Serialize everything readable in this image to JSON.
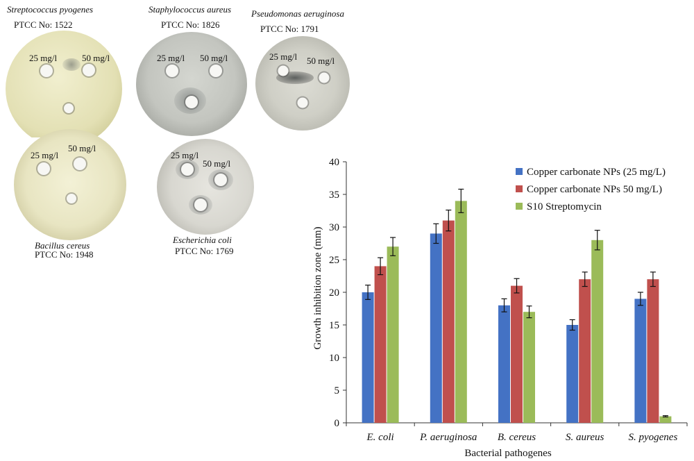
{
  "plates": [
    {
      "name": "Streptococcus pyogenes",
      "code": "PTCC No: 1522",
      "discs": [
        "25 mg/l",
        "50 mg/l"
      ]
    },
    {
      "name": "Staphylococcus aureus",
      "code": "PTCC No: 1826",
      "discs": [
        "25 mg/l",
        "50 mg/l"
      ]
    },
    {
      "name": "Pseudomonas aeruginosa",
      "code": "PTCC No: 1791",
      "discs": [
        "25 mg/l",
        "50 mg/l"
      ]
    },
    {
      "name": "Bacillus cereus",
      "code": "PTCC No: 1948",
      "discs": [
        "25 mg/l",
        "50 mg/l"
      ]
    },
    {
      "name": "Escherichia coli",
      "code": "PTCC No: 1769",
      "discs": [
        "25 mg/l",
        "50 mg/l"
      ]
    }
  ],
  "chart_data": {
    "type": "bar",
    "xlabel": "Bacterial pathogenes",
    "ylabel": "Growth inhibition zone (mm)",
    "ylim": [
      0,
      40
    ],
    "yticks": [
      0,
      5,
      10,
      15,
      20,
      25,
      30,
      35,
      40
    ],
    "categories": [
      "E. coli",
      "P. aeruginosa",
      "B. cereus",
      "S. aureus",
      "S. pyogenes"
    ],
    "series": [
      {
        "name": "Copper carbonate NPs (25 mg/L)",
        "color": "#4472c4",
        "values": [
          20,
          29,
          18,
          15,
          19
        ],
        "errors": [
          1.1,
          1.5,
          1.0,
          0.8,
          1.0
        ]
      },
      {
        "name": "Copper carbonate NPs 50 mg/L)",
        "color": "#c0504d",
        "values": [
          24,
          31,
          21,
          22,
          22
        ],
        "errors": [
          1.3,
          1.6,
          1.1,
          1.1,
          1.1
        ]
      },
      {
        "name": "S10 Streptomycin",
        "color": "#9bbb59",
        "values": [
          27,
          34,
          17,
          28,
          1
        ],
        "errors": [
          1.4,
          1.8,
          0.9,
          1.5,
          0.1
        ]
      }
    ],
    "legend_position": "top-right",
    "grid": false
  }
}
